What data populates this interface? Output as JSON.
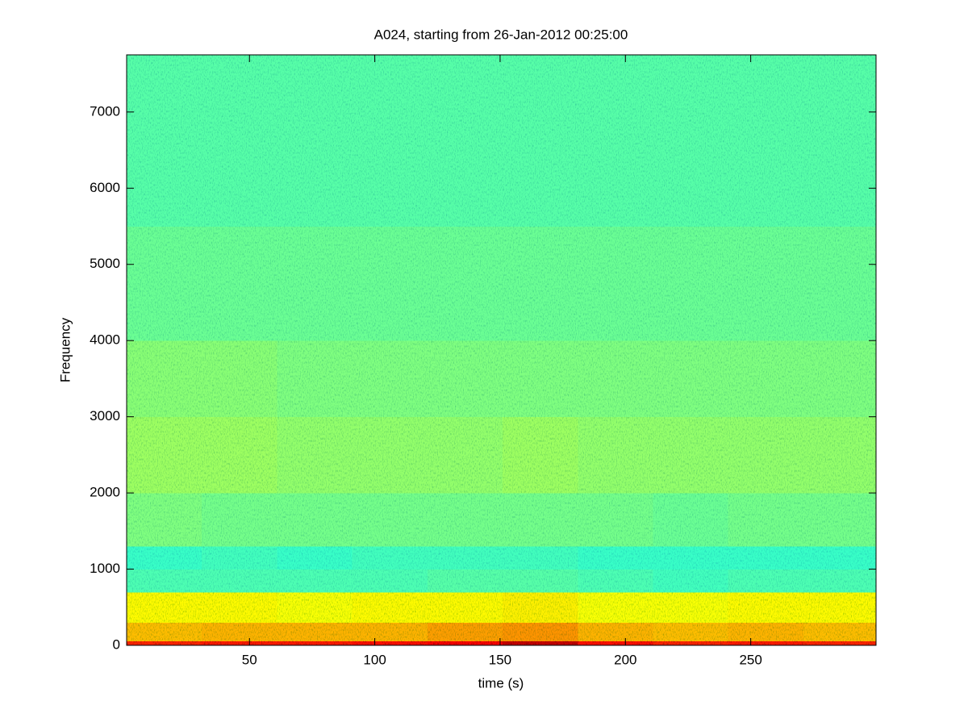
{
  "chart_data": {
    "type": "heatmap",
    "title": "A024, starting from 26-Jan-2012 00:25:00",
    "xlabel": "time (s)",
    "ylabel": "Frequency",
    "colormap": "jet",
    "xedges": [
      1,
      31,
      61,
      91,
      121,
      151,
      181,
      211,
      241,
      271,
      300
    ],
    "yedges": [
      0,
      60,
      300,
      700,
      1000,
      1300,
      2000,
      3000,
      4000,
      5500,
      7750
    ],
    "values": [
      [
        0.84,
        0.85,
        0.85,
        0.86,
        0.88,
        0.93,
        0.86,
        0.84,
        0.85,
        0.84
      ],
      [
        0.69,
        0.7,
        0.7,
        0.7,
        0.72,
        0.73,
        0.7,
        0.69,
        0.7,
        0.69
      ],
      [
        0.63,
        0.63,
        0.62,
        0.63,
        0.63,
        0.64,
        0.62,
        0.62,
        0.63,
        0.63
      ],
      [
        0.45,
        0.45,
        0.45,
        0.45,
        0.46,
        0.46,
        0.45,
        0.44,
        0.45,
        0.45
      ],
      [
        0.43,
        0.44,
        0.43,
        0.44,
        0.44,
        0.44,
        0.43,
        0.43,
        0.43,
        0.43
      ],
      [
        0.5,
        0.49,
        0.49,
        0.49,
        0.49,
        0.49,
        0.49,
        0.48,
        0.49,
        0.49
      ],
      [
        0.53,
        0.53,
        0.52,
        0.52,
        0.52,
        0.53,
        0.52,
        0.52,
        0.52,
        0.52
      ],
      [
        0.51,
        0.51,
        0.5,
        0.5,
        0.5,
        0.5,
        0.5,
        0.5,
        0.5,
        0.5
      ],
      [
        0.48,
        0.48,
        0.48,
        0.48,
        0.48,
        0.48,
        0.48,
        0.48,
        0.48,
        0.48
      ],
      [
        0.46,
        0.46,
        0.46,
        0.46,
        0.46,
        0.46,
        0.46,
        0.46,
        0.46,
        0.46
      ]
    ],
    "xlim": [
      1,
      300
    ],
    "xticks": [
      50,
      100,
      150,
      200,
      250
    ],
    "ylim": [
      0,
      7750
    ],
    "yticks": [
      0,
      1000,
      2000,
      3000,
      4000,
      5000,
      6000,
      7000
    ]
  }
}
